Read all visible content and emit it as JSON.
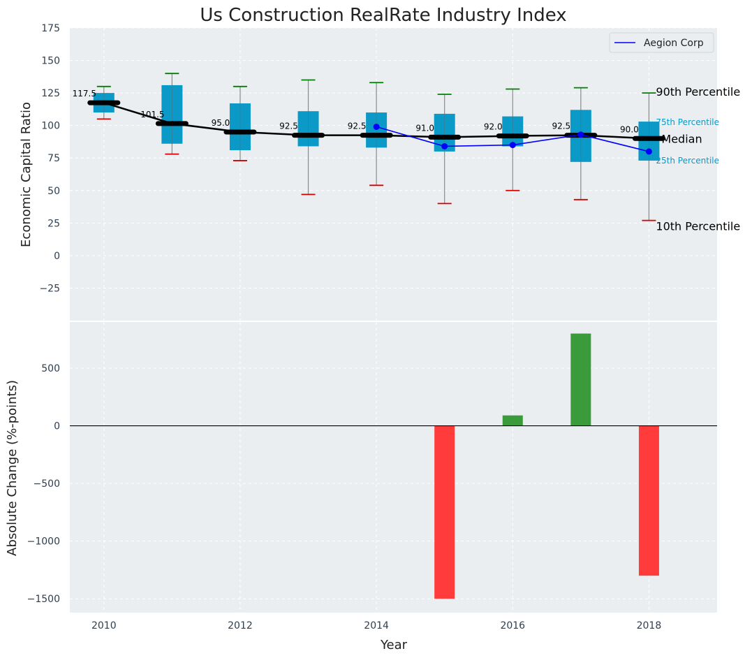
{
  "chart_data": [
    {
      "type": "box",
      "title": "Us Construction RealRate Industry Index",
      "ylabel": "Economic Capital Ratio",
      "ylim": [
        -50,
        175
      ],
      "yticks": [
        -25,
        0,
        25,
        50,
        75,
        100,
        125,
        150,
        175
      ],
      "ytick_labels": [
        "−25",
        "0",
        "25",
        "50",
        "75",
        "100",
        "125",
        "150",
        "175"
      ],
      "xlim": [
        2009.5,
        2019
      ],
      "x": [
        2010,
        2011,
        2012,
        2013,
        2014,
        2015,
        2016,
        2017,
        2018
      ],
      "p10": [
        105,
        78,
        73,
        47,
        54,
        40,
        50,
        43,
        27
      ],
      "p25": [
        110,
        86,
        81,
        84,
        83,
        80,
        84,
        72,
        73
      ],
      "median": [
        117.5,
        101.5,
        95.0,
        92.5,
        92.5,
        91.0,
        92.0,
        92.5,
        90.0
      ],
      "median_labels": [
        "117.5",
        "101.5",
        "95.0",
        "92.5",
        "92.5",
        "91.0",
        "92.0",
        "92.5",
        "90.0"
      ],
      "p75": [
        125,
        131,
        117,
        111,
        110,
        109,
        107,
        112,
        103
      ],
      "p90": [
        130,
        140,
        130,
        135,
        133,
        124,
        128,
        129,
        125
      ],
      "company": {
        "name": "Aegion Corp",
        "x": [
          2014,
          2015,
          2016,
          2017,
          2018
        ],
        "values": [
          99,
          84,
          85,
          93,
          80
        ]
      },
      "percentile_labels": {
        "p90": "90th Percentile",
        "p75": "75th Percentile",
        "median": "Median",
        "p25": "25th Percentile",
        "p10": "10th Percentile"
      },
      "legend": {
        "position": "top-right",
        "entries": [
          "Aegion Corp"
        ]
      },
      "grid": true,
      "colors": {
        "box": "#0b9ac7",
        "median": "#000000",
        "whisker": "#8a8a8a",
        "cap_top": "#008000",
        "cap_bottom": "#d40000",
        "company": "#0000ff"
      }
    },
    {
      "type": "bar",
      "ylabel": "Absolute Change (%-points)",
      "xlabel": "Year",
      "ylim": [
        -1620,
        900
      ],
      "yticks": [
        -1500,
        -1000,
        -500,
        0,
        500
      ],
      "ytick_labels": [
        "−1500",
        "−1000",
        "−500",
        "0",
        "500"
      ],
      "xticks": [
        2010,
        2012,
        2014,
        2016,
        2018
      ],
      "xtick_labels": [
        "2010",
        "2012",
        "2014",
        "2016",
        "2018"
      ],
      "categories": [
        2015,
        2016,
        2017,
        2018
      ],
      "values": [
        -1500,
        90,
        800,
        -1300
      ],
      "colors": {
        "positive": "#3a9b3a",
        "negative": "#ff3b3b"
      }
    }
  ]
}
